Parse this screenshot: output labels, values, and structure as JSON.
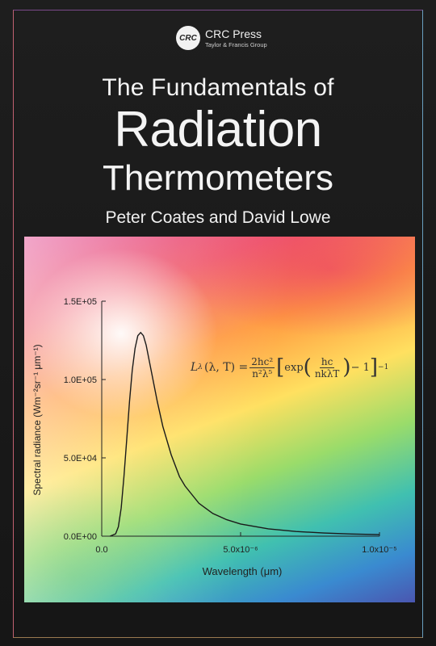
{
  "publisher": {
    "logo_text": "CRC",
    "name": "CRC Press",
    "subtitle": "Taylor & Francis Group"
  },
  "title": {
    "line1": "The Fundamentals of",
    "line2": "Radiation",
    "line3": "Thermometers"
  },
  "authors": "Peter Coates and David Lowe",
  "formula": {
    "lhs": "L",
    "lhs_sub": "λ",
    "lhs_args": "(λ, T) =",
    "frac1_num": "2hc²",
    "frac1_den": "n²λ⁵",
    "exp_text": "exp",
    "frac2_num": "hc",
    "frac2_den": "nkλT",
    "tail": "− 1",
    "power": "−1"
  },
  "colors": {
    "background": "#1a1a1a",
    "title_text": "#f4f4f4",
    "curve": "#1a1a1a"
  },
  "chart_data": {
    "type": "line",
    "title": "",
    "xlabel": "Wavelength (μm)",
    "ylabel": "Spectral radiance (Wm⁻²sr⁻¹ μm⁻¹)",
    "xlim": [
      0,
      1e-05
    ],
    "ylim": [
      0,
      150000.0
    ],
    "x_ticks": [
      {
        "value": 0,
        "label": "0.0"
      },
      {
        "value": 5e-06,
        "label": "5.0x10⁻⁶"
      },
      {
        "value": 1e-05,
        "label": "1.0x10⁻⁵"
      }
    ],
    "y_ticks": [
      {
        "value": 0,
        "label": "0.0E+00"
      },
      {
        "value": 50000,
        "label": "5.0E+04"
      },
      {
        "value": 100000,
        "label": "1.0E+05"
      },
      {
        "value": 150000,
        "label": "1.5E+05"
      }
    ],
    "grid": false,
    "series": [
      {
        "x": [
          3e-07,
          5e-07,
          6e-07,
          7e-07,
          8e-07,
          9e-07,
          1e-06,
          1.1e-06,
          1.2e-06,
          1.3e-06,
          1.4e-06,
          1.5e-06,
          1.6e-06,
          1.8e-06,
          2e-06,
          2.2e-06,
          2.5e-06,
          2.8e-06,
          3e-06,
          3.5e-06,
          4e-06,
          4.5e-06,
          5e-06,
          6e-06,
          7e-06,
          8e-06,
          9e-06,
          1e-05
        ],
        "y": [
          0,
          1500,
          6000,
          18000,
          38000,
          62000,
          86000,
          106000,
          120000,
          128000,
          130000,
          128000,
          122000,
          104000,
          86000,
          70000,
          52000,
          38000,
          32000,
          21000,
          14500,
          10500,
          7800,
          4700,
          3000,
          2000,
          1400,
          1000
        ]
      }
    ]
  }
}
